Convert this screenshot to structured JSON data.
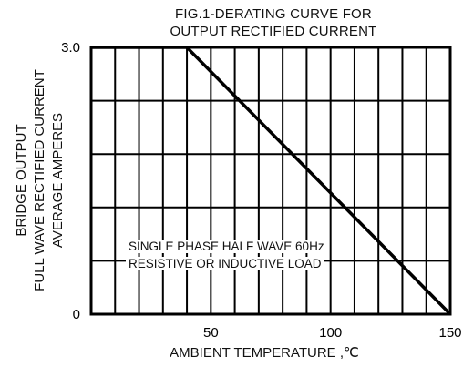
{
  "chart_data": {
    "type": "line",
    "title_lines": [
      "FIG.1-DERATING CURVE FOR",
      "OUTPUT RECTIFIED CURRENT"
    ],
    "ylabel_lines": [
      "BRIDGE OUTPUT",
      "FULL WAVE RECTIFIED CURRENT",
      "AVERAGE AMPERES"
    ],
    "xlabel": "AMBIENT TEMPERATURE ,℃",
    "xlim": [
      0,
      150
    ],
    "ylim": [
      0,
      3.0
    ],
    "x_ticks": [
      50,
      100,
      150
    ],
    "y_ticks": [
      {
        "value": 0,
        "label": "0"
      },
      {
        "value": 3.0,
        "label": "3.0"
      }
    ],
    "grid": true,
    "annotation_lines": [
      "SINGLE PHASE HALF WAVE  60Hz",
      "RESISTIVE OR INDUCTIVE LOAD"
    ],
    "series": [
      {
        "x": [
          0,
          40,
          150
        ],
        "y": [
          3.0,
          3.0,
          0
        ]
      }
    ]
  }
}
